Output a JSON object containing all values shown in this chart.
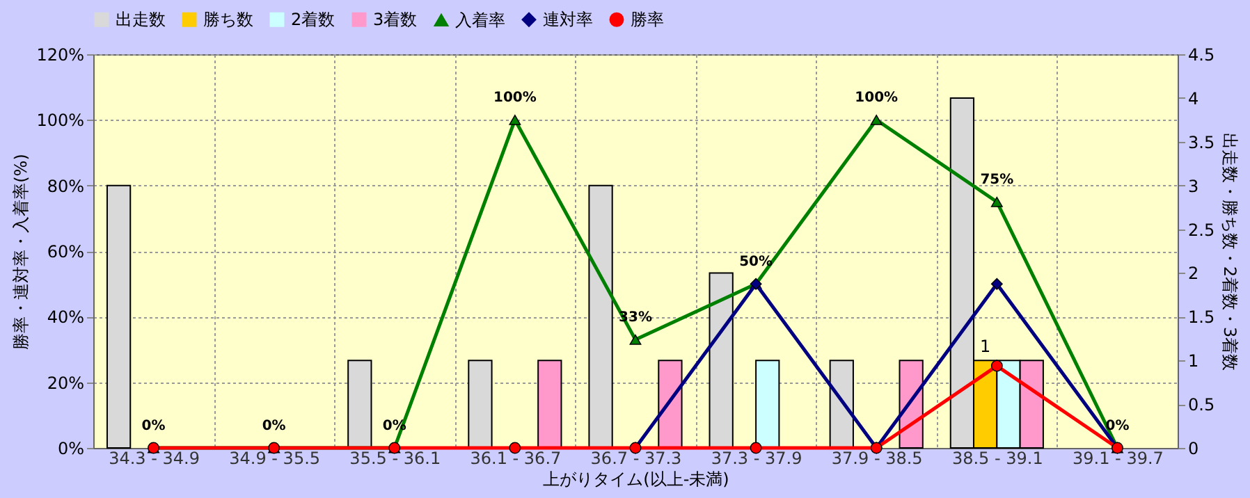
{
  "chart_data": {
    "type": "bar",
    "xlabel": "上がりタイム(以上-未満)",
    "ylabel": "勝率・連対率・入着率(%)",
    "y2label": "出走数・勝ち数・2着数・3着数",
    "categories": [
      "34.3 - 34.9",
      "34.9 - 35.5",
      "35.5 - 36.1",
      "36.1 - 36.7",
      "36.7 - 37.3",
      "37.3 - 37.9",
      "37.9 - 38.5",
      "38.5 - 39.1",
      "39.1 - 39.7"
    ],
    "series": [
      {
        "name": "出走数",
        "color": "#d9d9d9",
        "axis": "y2",
        "values": [
          3,
          0,
          1,
          1,
          3,
          2,
          1,
          4,
          0
        ]
      },
      {
        "name": "勝ち数",
        "color": "#ffcc00",
        "axis": "y2",
        "values": [
          0,
          0,
          0,
          0,
          0,
          0,
          0,
          1,
          0
        ],
        "value_labels": [
          null,
          null,
          null,
          null,
          null,
          null,
          null,
          "1",
          null
        ]
      },
      {
        "name": "2着数",
        "color": "#ccffff",
        "axis": "y2",
        "values": [
          0,
          0,
          0,
          0,
          0,
          1,
          0,
          1,
          0
        ]
      },
      {
        "name": "3着数",
        "color": "#ff99cc",
        "axis": "y2",
        "values": [
          0,
          0,
          0,
          1,
          1,
          0,
          1,
          1,
          0
        ]
      },
      {
        "name": "入着率",
        "type": "line",
        "marker": "triangle",
        "color": "#008000",
        "values": [
          0,
          0,
          0,
          100,
          33,
          50,
          100,
          75,
          0
        ],
        "value_labels": [
          "0%",
          "0%",
          "0%",
          "100%",
          "33%",
          "50%",
          "100%",
          "75%",
          "0%"
        ]
      },
      {
        "name": "連対率",
        "type": "line",
        "marker": "diamond",
        "color": "#000080",
        "values": [
          null,
          null,
          null,
          null,
          0,
          50,
          0,
          50,
          0
        ]
      },
      {
        "name": "勝率",
        "type": "line",
        "marker": "circle",
        "color": "#ff0000",
        "values": [
          0,
          0,
          0,
          0,
          0,
          0,
          0,
          25,
          0
        ]
      }
    ],
    "ylim": [
      0,
      120
    ],
    "yticks": [
      {
        "value": 0,
        "label": "0%"
      },
      {
        "value": 20,
        "label": "20%"
      },
      {
        "value": 40,
        "label": "40%"
      },
      {
        "value": 60,
        "label": "60%"
      },
      {
        "value": 80,
        "label": "80%"
      },
      {
        "value": 100,
        "label": "100%"
      },
      {
        "value": 120,
        "label": "120%"
      }
    ],
    "y2lim": [
      0,
      4.5
    ],
    "y2ticks": [
      0,
      0.5,
      1,
      1.5,
      2,
      2.5,
      3,
      3.5,
      4,
      4.5
    ],
    "grid": true,
    "legend": "top"
  }
}
